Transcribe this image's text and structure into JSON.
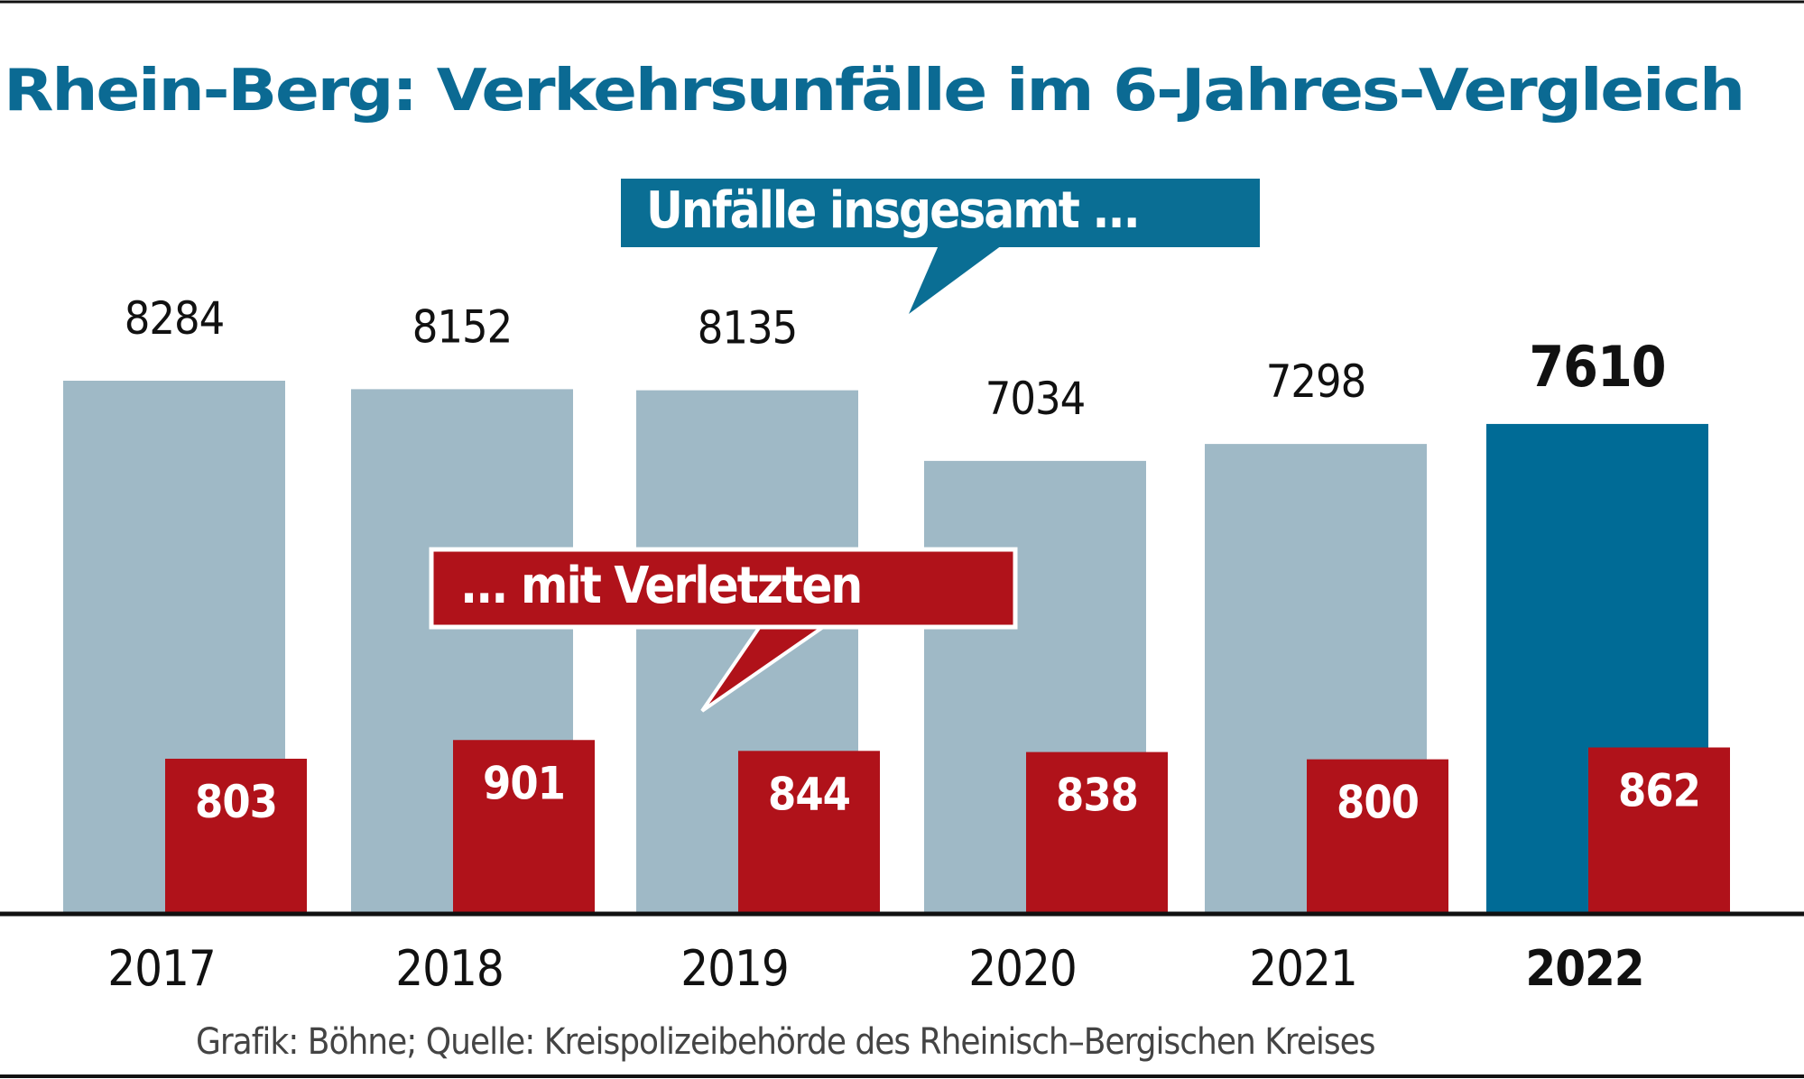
{
  "chart_data": {
    "type": "bar",
    "title": "Rhein-Berg: Verkehrsunfälle im 6-Jahres-Vergleich",
    "categories": [
      "2017",
      "2018",
      "2019",
      "2020",
      "2021",
      "2022"
    ],
    "highlight_category": "2022",
    "series": [
      {
        "name": "Unfälle insgesamt ...",
        "values": [
          8284,
          8152,
          8135,
          7034,
          7298,
          7610
        ],
        "color": "#9fb9c6",
        "highlight_color": "#006b96"
      },
      {
        "name": "... mit Verletzten",
        "values": [
          803,
          901,
          844,
          838,
          800,
          862
        ],
        "color": "#b0121a"
      }
    ],
    "grid": false,
    "source": "Grafik: Böhne; Quelle: Kreispolizeibehörde des Rheinisch–Bergischen Kreises"
  }
}
